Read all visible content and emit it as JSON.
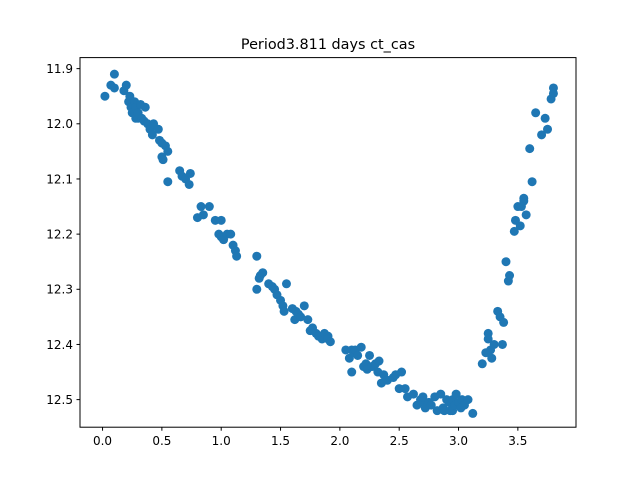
{
  "chart_data": {
    "type": "scatter",
    "title": "Period3.811 days ct_cas",
    "xlabel": "",
    "ylabel": "",
    "xlim": [
      -0.19,
      3.99
    ],
    "ylim": [
      12.55,
      11.88
    ],
    "y_inverted": true,
    "grid": false,
    "xticks": [
      0.0,
      0.5,
      1.0,
      1.5,
      2.0,
      2.5,
      3.0,
      3.5
    ],
    "xtick_labels": [
      "0.0",
      "0.5",
      "1.0",
      "1.5",
      "2.0",
      "2.5",
      "3.0",
      "3.5"
    ],
    "yticks": [
      11.9,
      12.0,
      12.1,
      12.2,
      12.3,
      12.4,
      12.5
    ],
    "ytick_labels": [
      "11.9",
      "12.0",
      "12.1",
      "12.2",
      "12.3",
      "12.4",
      "12.5"
    ],
    "marker_color": "#1f77b4",
    "series": [
      {
        "name": "",
        "x": [
          0.02,
          0.07,
          0.1,
          0.1,
          0.18,
          0.2,
          0.22,
          0.23,
          0.24,
          0.25,
          0.27,
          0.28,
          0.28,
          0.3,
          0.3,
          0.32,
          0.33,
          0.35,
          0.36,
          0.38,
          0.4,
          0.42,
          0.43,
          0.47,
          0.48,
          0.5,
          0.5,
          0.51,
          0.53,
          0.55,
          0.55,
          0.65,
          0.67,
          0.7,
          0.73,
          0.74,
          0.8,
          0.83,
          0.85,
          0.9,
          0.95,
          0.98,
          1.0,
          1.0,
          1.02,
          1.05,
          1.08,
          1.1,
          1.12,
          1.13,
          1.3,
          1.3,
          1.32,
          1.33,
          1.35,
          1.4,
          1.43,
          1.45,
          1.47,
          1.5,
          1.52,
          1.53,
          1.55,
          1.6,
          1.62,
          1.63,
          1.65,
          1.67,
          1.7,
          1.73,
          1.75,
          1.77,
          1.8,
          1.82,
          1.85,
          1.87,
          1.9,
          1.9,
          1.92,
          2.05,
          2.08,
          2.1,
          2.1,
          2.12,
          2.13,
          2.15,
          2.18,
          2.2,
          2.22,
          2.23,
          2.25,
          2.27,
          2.3,
          2.32,
          2.33,
          2.35,
          2.37,
          2.4,
          2.45,
          2.47,
          2.5,
          2.52,
          2.55,
          2.57,
          2.62,
          2.65,
          2.68,
          2.7,
          2.7,
          2.72,
          2.75,
          2.77,
          2.8,
          2.82,
          2.85,
          2.87,
          2.88,
          2.9,
          2.92,
          2.93,
          2.95,
          2.95,
          2.97,
          2.98,
          3.0,
          3.02,
          3.03,
          3.05,
          3.08,
          3.12,
          3.2,
          3.23,
          3.25,
          3.25,
          3.27,
          3.28,
          3.3,
          3.33,
          3.35,
          3.37,
          3.38,
          3.4,
          3.42,
          3.43,
          3.47,
          3.48,
          3.5,
          3.52,
          3.53,
          3.55,
          3.55,
          3.57,
          3.6,
          3.62,
          3.65,
          3.7,
          3.73,
          3.75,
          3.78,
          3.8,
          3.8
        ],
        "y": [
          11.95,
          11.93,
          11.935,
          11.91,
          11.94,
          11.93,
          11.96,
          11.95,
          11.97,
          11.98,
          11.96,
          11.97,
          11.99,
          11.99,
          11.98,
          11.965,
          11.99,
          11.995,
          11.97,
          12.0,
          12.01,
          12.02,
          12.0,
          12.01,
          12.03,
          12.035,
          12.06,
          12.065,
          12.04,
          12.05,
          12.105,
          12.085,
          12.095,
          12.1,
          12.11,
          12.09,
          12.17,
          12.15,
          12.165,
          12.15,
          12.175,
          12.2,
          12.205,
          12.175,
          12.21,
          12.2,
          12.2,
          12.22,
          12.23,
          12.24,
          12.24,
          12.3,
          12.28,
          12.275,
          12.27,
          12.29,
          12.295,
          12.3,
          12.31,
          12.32,
          12.33,
          12.34,
          12.29,
          12.335,
          12.355,
          12.34,
          12.345,
          12.35,
          12.33,
          12.355,
          12.375,
          12.37,
          12.38,
          12.385,
          12.39,
          12.38,
          12.385,
          12.39,
          12.395,
          12.41,
          12.425,
          12.41,
          12.45,
          12.415,
          12.41,
          12.42,
          12.405,
          12.44,
          12.435,
          12.445,
          12.42,
          12.44,
          12.435,
          12.45,
          12.43,
          12.47,
          12.455,
          12.465,
          12.46,
          12.455,
          12.48,
          12.45,
          12.48,
          12.495,
          12.49,
          12.51,
          12.5,
          12.505,
          12.495,
          12.515,
          12.505,
          12.51,
          12.495,
          12.52,
          12.49,
          12.515,
          12.52,
          12.5,
          12.505,
          12.52,
          12.5,
          12.52,
          12.51,
          12.49,
          12.505,
          12.515,
          12.5,
          12.51,
          12.5,
          12.525,
          12.435,
          12.415,
          12.38,
          12.39,
          12.41,
          12.425,
          12.4,
          12.34,
          12.35,
          12.4,
          12.36,
          12.25,
          12.285,
          12.275,
          12.195,
          12.175,
          12.15,
          12.185,
          12.15,
          12.14,
          12.135,
          12.165,
          12.045,
          12.105,
          11.98,
          12.02,
          11.99,
          12.01,
          11.955,
          11.935,
          11.945
        ]
      }
    ]
  }
}
